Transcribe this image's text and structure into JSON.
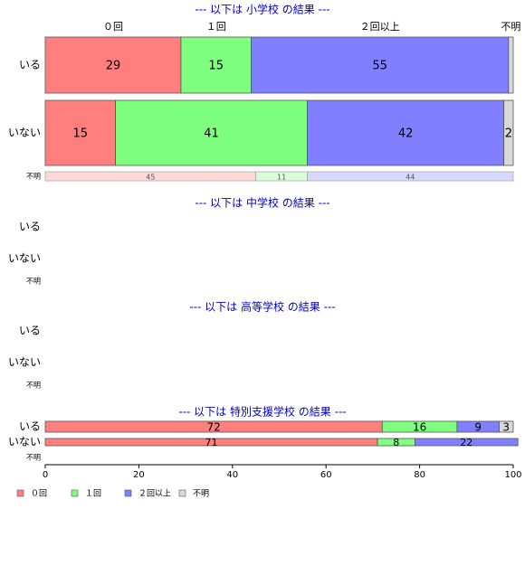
{
  "chart_data": [
    {
      "type": "bar",
      "title": "--- 以下は 小学校 の結果 ---",
      "categories": [
        "いる",
        "いない",
        "不明"
      ],
      "series": [
        {
          "name": "０回",
          "color": "#ff7f7f",
          "values": [
            29,
            15,
            45
          ]
        },
        {
          "name": "１回",
          "color": "#7fff7f",
          "values": [
            15,
            41,
            11
          ]
        },
        {
          "name": "２回以上",
          "color": "#7f7fff",
          "values": [
            55,
            42,
            44
          ]
        },
        {
          "name": "不明",
          "color": "#d9d9d9",
          "values": [
            1,
            2,
            0
          ]
        }
      ]
    },
    {
      "type": "bar",
      "title": "--- 以下は 中学校 の結果 ---",
      "categories": [
        "いる",
        "いない",
        "不明"
      ],
      "series": [
        {
          "name": "０回",
          "color": "#ff7f7f",
          "values": [
            null,
            null,
            null
          ]
        },
        {
          "name": "１回",
          "color": "#7fff7f",
          "values": [
            null,
            null,
            null
          ]
        },
        {
          "name": "２回以上",
          "color": "#7f7fff",
          "values": [
            null,
            null,
            null
          ]
        },
        {
          "name": "不明",
          "color": "#d9d9d9",
          "values": [
            null,
            null,
            null
          ]
        }
      ]
    },
    {
      "type": "bar",
      "title": "--- 以下は 高等学校 の結果 ---",
      "categories": [
        "いる",
        "いない",
        "不明"
      ],
      "series": [
        {
          "name": "０回",
          "color": "#ff7f7f",
          "values": [
            null,
            null,
            null
          ]
        },
        {
          "name": "１回",
          "color": "#7fff7f",
          "values": [
            null,
            null,
            null
          ]
        },
        {
          "name": "２回以上",
          "color": "#7f7fff",
          "values": [
            null,
            null,
            null
          ]
        },
        {
          "name": "不明",
          "color": "#d9d9d9",
          "values": [
            null,
            null,
            null
          ]
        }
      ]
    },
    {
      "type": "bar",
      "title": "--- 以下は 特別支援学校 の結果 ---",
      "categories": [
        "いる",
        "いない",
        "不明"
      ],
      "series": [
        {
          "name": "０回",
          "color": "#ff7f7f",
          "values": [
            72,
            71,
            null
          ]
        },
        {
          "name": "１回",
          "color": "#7fff7f",
          "values": [
            16,
            8,
            null
          ]
        },
        {
          "name": "２回以上",
          "color": "#7f7fff",
          "values": [
            9,
            22,
            null
          ]
        },
        {
          "name": "不明",
          "color": "#d9d9d9",
          "values": [
            3,
            null,
            null
          ]
        }
      ],
      "xlim": [
        0,
        100
      ],
      "xticks": [
        0,
        20,
        40,
        60,
        80,
        100
      ]
    }
  ]
}
